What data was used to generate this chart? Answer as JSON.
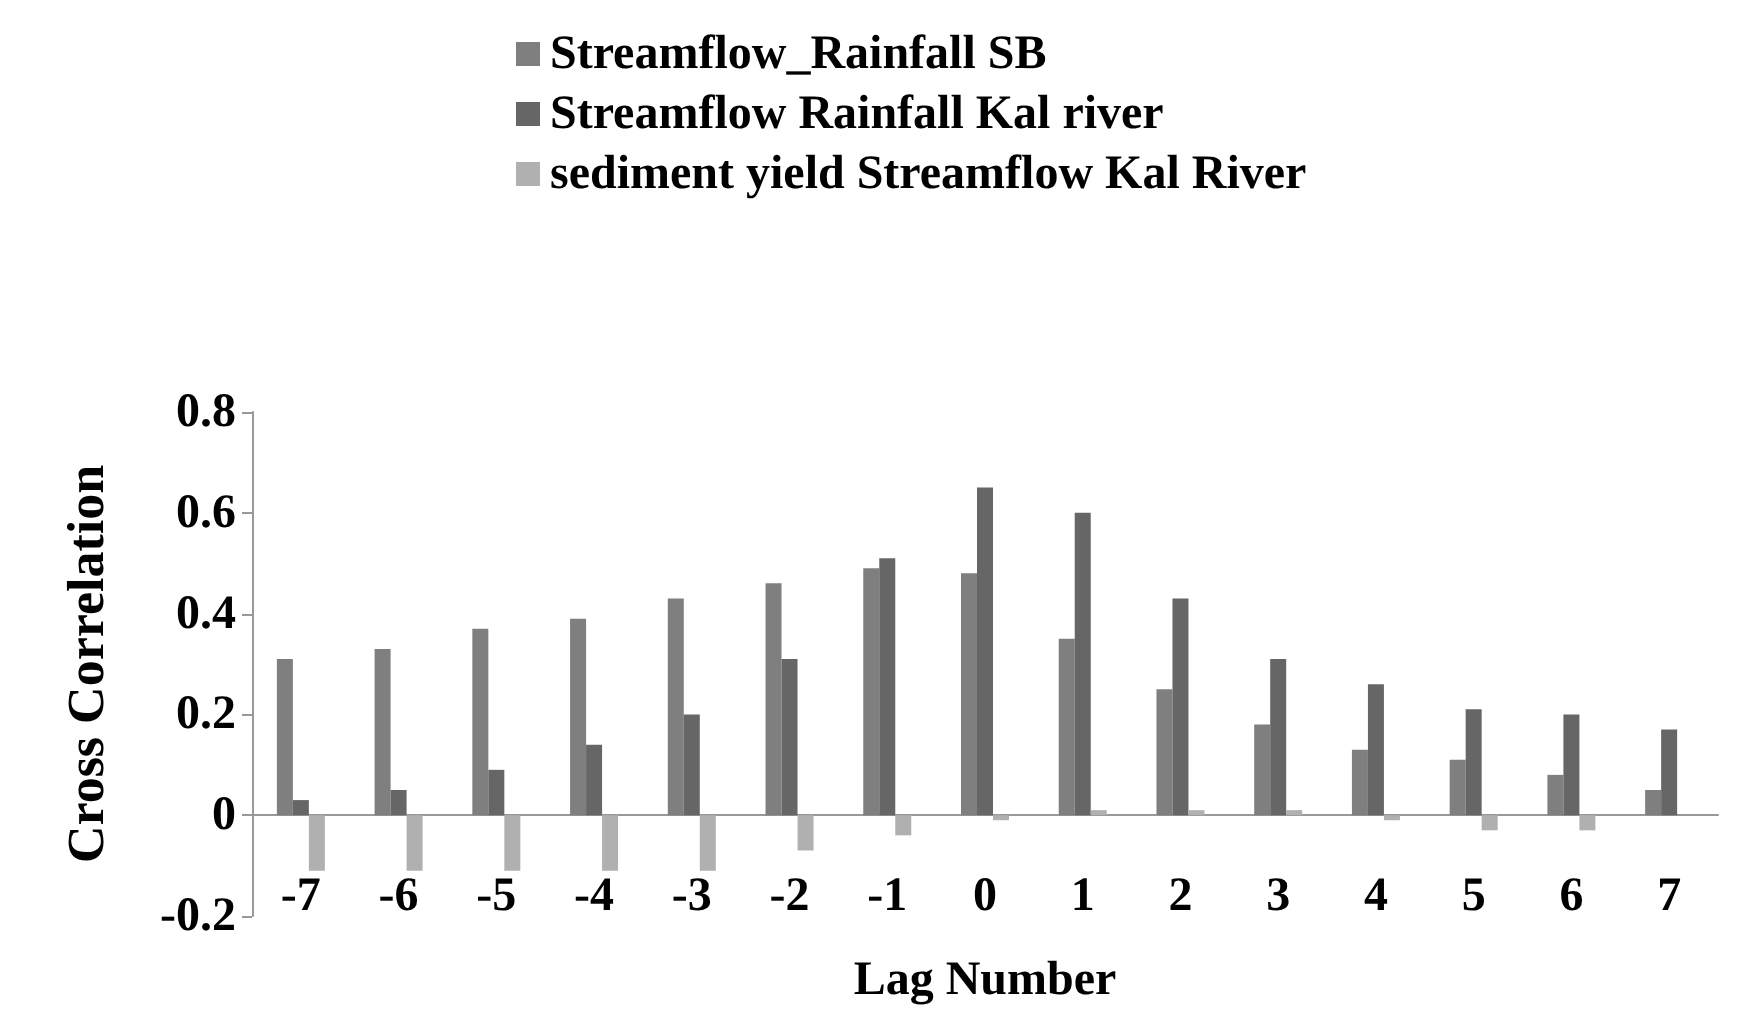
{
  "chart_data": {
    "type": "bar",
    "xlabel": "Lag Number",
    "ylabel": "Cross Correlation",
    "categories": [
      "-7",
      "-6",
      "-5",
      "-4",
      "-3",
      "-2",
      "-1",
      "0",
      "1",
      "2",
      "3",
      "4",
      "5",
      "6",
      "7"
    ],
    "series": [
      {
        "name": "Streamflow_Rainfall SB",
        "color": "#7f7f7f",
        "values": [
          0.31,
          0.33,
          0.37,
          0.39,
          0.43,
          0.46,
          0.49,
          0.48,
          0.35,
          0.25,
          0.18,
          0.13,
          0.11,
          0.08,
          0.05
        ]
      },
      {
        "name": "Streamflow Rainfall Kal river",
        "color": "#666666",
        "values": [
          0.03,
          0.05,
          0.09,
          0.14,
          0.2,
          0.31,
          0.51,
          0.65,
          0.6,
          0.43,
          0.31,
          0.26,
          0.21,
          0.2,
          0.17
        ]
      },
      {
        "name": "sediment yield Streamflow Kal River",
        "color": "#b0b0b0",
        "values": [
          -0.11,
          -0.11,
          -0.11,
          -0.11,
          -0.11,
          -0.07,
          -0.04,
          -0.01,
          0.01,
          0.01,
          0.01,
          -0.01,
          -0.03,
          -0.03,
          0
        ]
      }
    ],
    "ylim": [
      -0.2,
      0.8
    ],
    "yticks": [
      -0.2,
      0,
      0.2,
      0.4,
      0.6,
      0.8
    ],
    "grid": false,
    "legend": "top"
  }
}
